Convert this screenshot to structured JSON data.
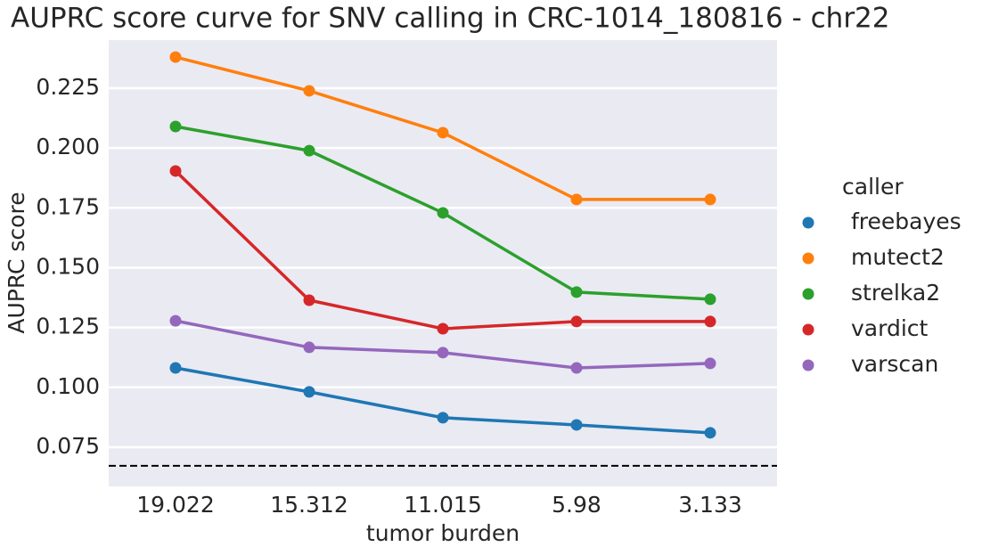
{
  "chart_data": {
    "type": "line",
    "title": "AUPRC score curve for SNV calling in CRC-1014_180816 - chr22",
    "x_label": "tumor burden",
    "y_label": "AUPRC score",
    "categories": [
      "19.022",
      "15.312",
      "11.015",
      "5.98",
      "3.133"
    ],
    "series": [
      {
        "name": "freebayes",
        "color": "#1f77b4",
        "values": [
          0.1081,
          0.0981,
          0.0873,
          0.0843,
          0.081
        ]
      },
      {
        "name": "mutect2",
        "color": "#ff7f0e",
        "values": [
          0.238,
          0.2239,
          0.2064,
          0.1785,
          0.1785
        ]
      },
      {
        "name": "strelka2",
        "color": "#2ca02c",
        "values": [
          0.209,
          0.1989,
          0.1729,
          0.1398,
          0.1368
        ]
      },
      {
        "name": "vardict",
        "color": "#d62728",
        "values": [
          0.1904,
          0.1364,
          0.1245,
          0.1275,
          0.1275
        ]
      },
      {
        "name": "varscan",
        "color": "#9467bd",
        "values": [
          0.1278,
          0.1167,
          0.1145,
          0.1081,
          0.11
        ]
      }
    ],
    "legend_title": "caller",
    "reference_line": 0.0672,
    "ylim": [
      0.0586,
      0.2451
    ],
    "yticks": [
      0.075,
      {
        "value": 0.1,
        "label": "0.100"
      },
      0.125,
      {
        "value": 0.15,
        "label": "0.150"
      },
      0.175,
      {
        "value": 0.2,
        "label": "0.200"
      },
      0.225
    ],
    "grid": true
  }
}
